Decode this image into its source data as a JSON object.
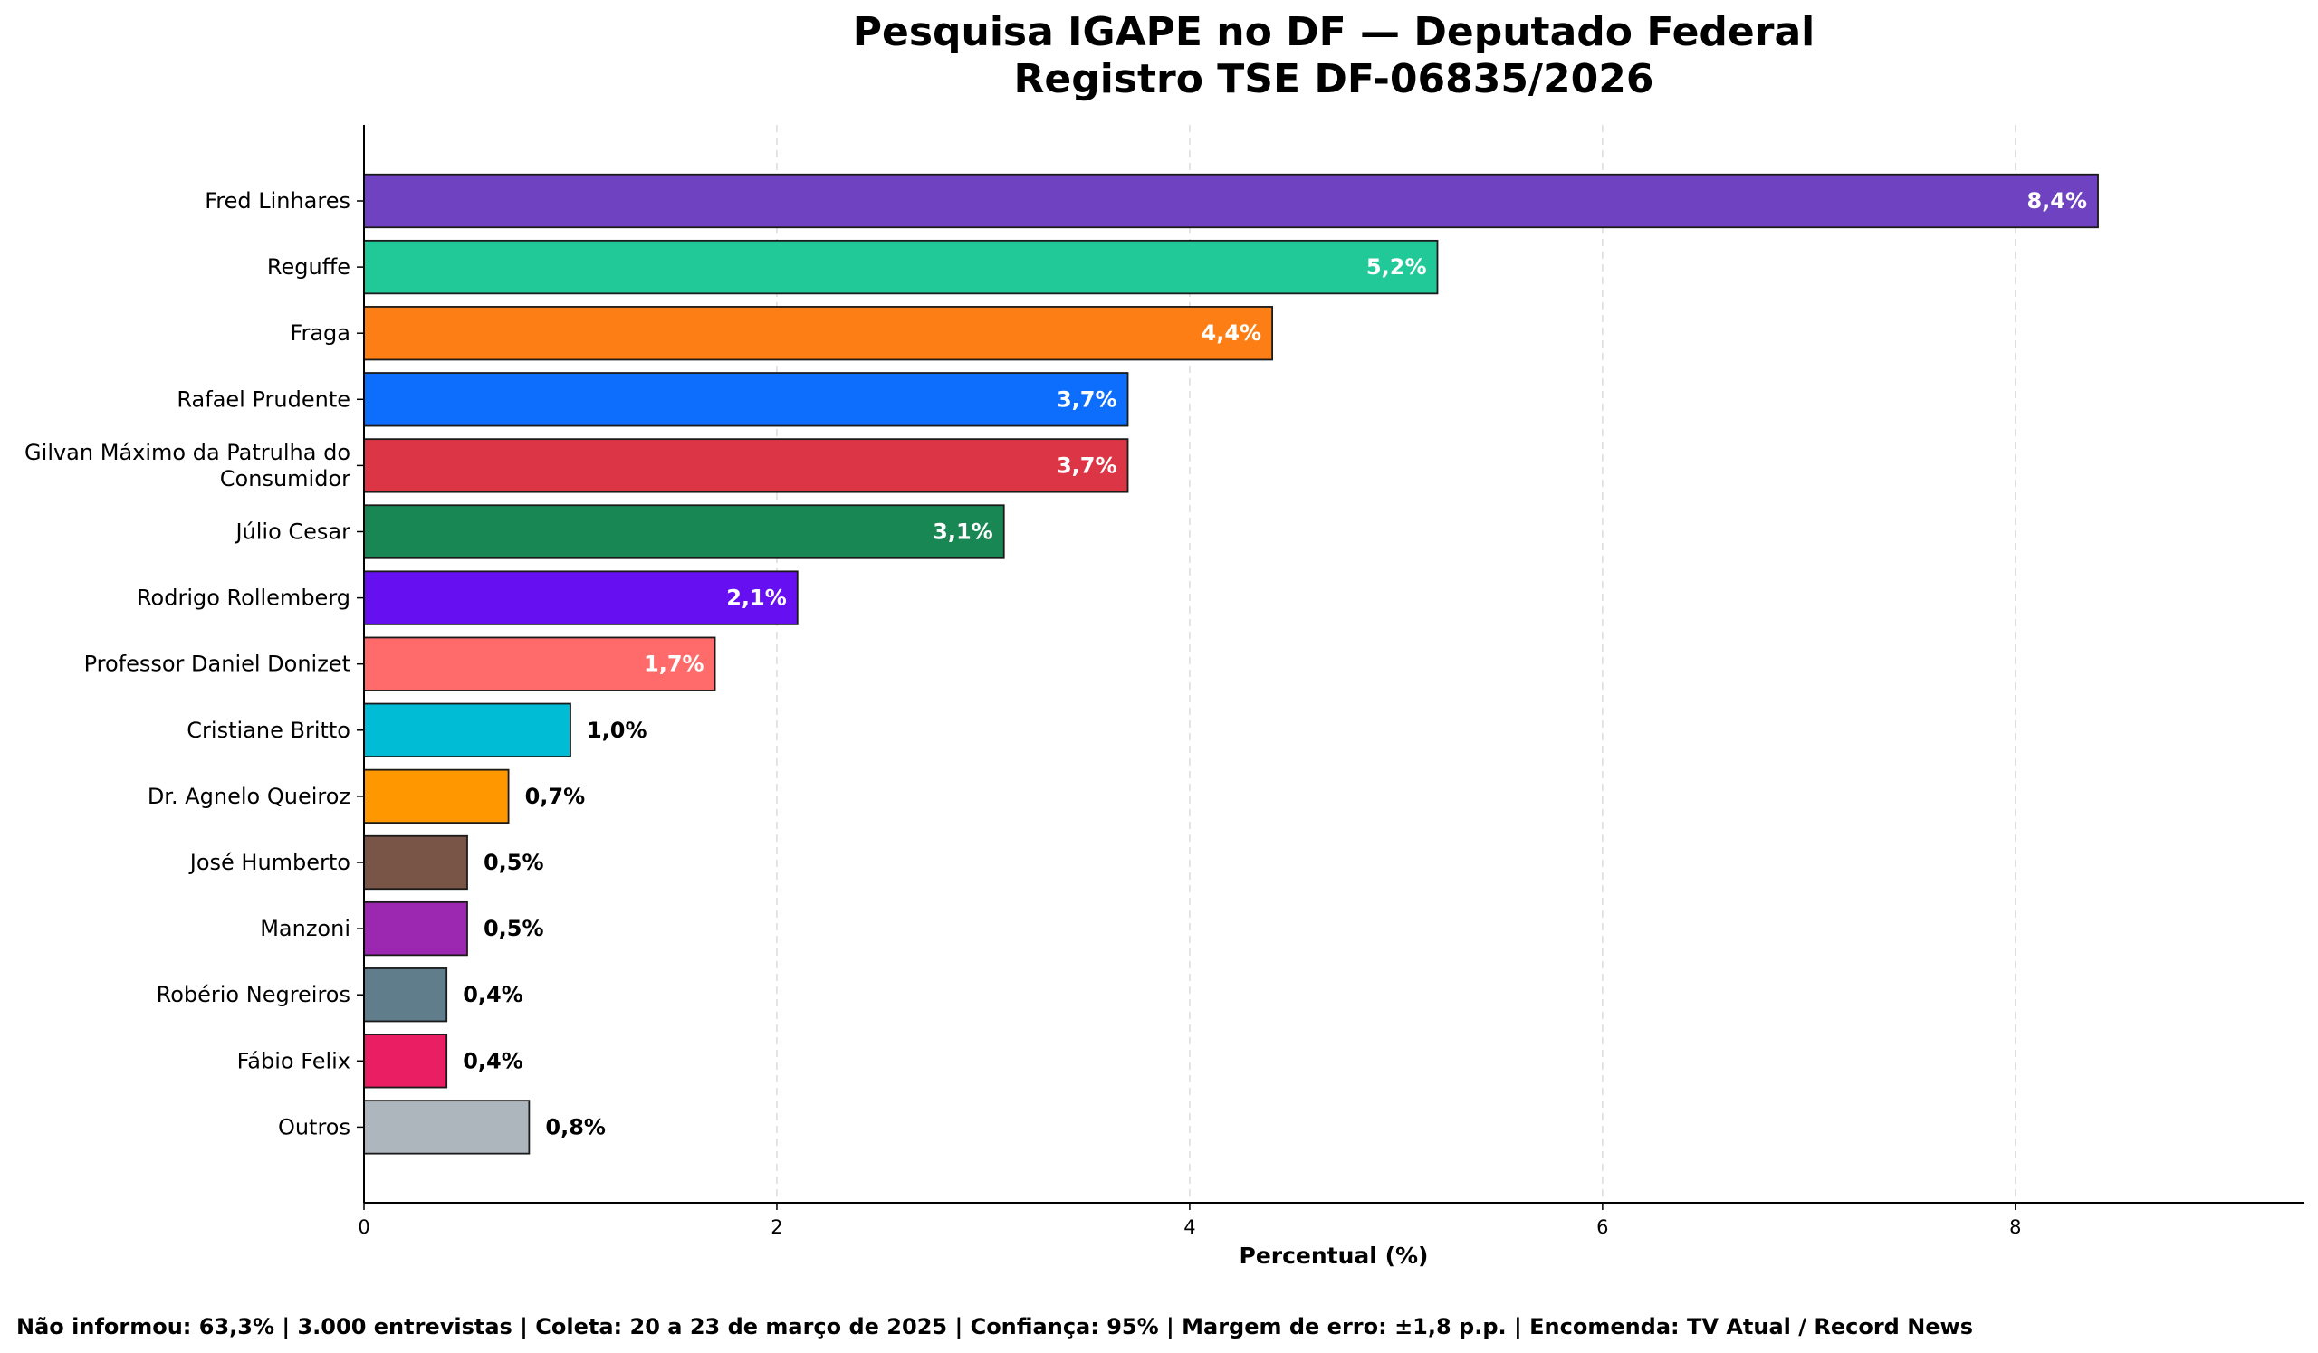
{
  "chart_data": {
    "type": "bar",
    "orientation": "horizontal",
    "title": "Pesquisa IGAPE no DF — Deputado Federal",
    "subtitle": "Registro TSE DF-06835/2026",
    "xlabel": "Percentual (%)",
    "ylabel": "",
    "xlim": [
      0,
      9.4
    ],
    "xticks": [
      0,
      2,
      4,
      6,
      8
    ],
    "grid": "x-dashed",
    "categories": [
      "Fred Linhares",
      "Reguffe",
      "Fraga",
      "Rafael Prudente",
      "Gilvan Máximo da Patrulha do Consumidor",
      "Júlio Cesar",
      "Rodrigo Rollemberg",
      "Professor Daniel Donizet",
      "Cristiane Britto",
      "Dr. Agnelo Queiroz",
      "José Humberto",
      "Manzoni",
      "Robério Negreiros",
      "Fábio Felix",
      "Outros"
    ],
    "category_lines": [
      [
        "Fred Linhares"
      ],
      [
        "Reguffe"
      ],
      [
        "Fraga"
      ],
      [
        "Rafael Prudente"
      ],
      [
        "Gilvan Máximo da Patrulha do",
        "Consumidor"
      ],
      [
        "Júlio Cesar"
      ],
      [
        "Rodrigo Rollemberg"
      ],
      [
        "Professor Daniel Donizet"
      ],
      [
        "Cristiane Britto"
      ],
      [
        "Dr. Agnelo Queiroz"
      ],
      [
        "José Humberto"
      ],
      [
        "Manzoni"
      ],
      [
        "Robério Negreiros"
      ],
      [
        "Fábio Felix"
      ],
      [
        "Outros"
      ]
    ],
    "values": [
      8.4,
      5.2,
      4.4,
      3.7,
      3.7,
      3.1,
      2.1,
      1.7,
      1.0,
      0.7,
      0.5,
      0.5,
      0.4,
      0.4,
      0.8
    ],
    "data_labels": [
      "8,4%",
      "5,2%",
      "4,4%",
      "3,7%",
      "3,7%",
      "3,1%",
      "2,1%",
      "1,7%",
      "1,0%",
      "0,7%",
      "0,5%",
      "0,5%",
      "0,4%",
      "0,4%",
      "0,8%"
    ],
    "colors": [
      "#6f42c1",
      "#20c997",
      "#fd7e14",
      "#0d6efd",
      "#dc3545",
      "#198754",
      "#6610f2",
      "#ff6b6b",
      "#00bcd4",
      "#ff9800",
      "#795548",
      "#9c27b0",
      "#607d8b",
      "#e91e63",
      "#adb5bd"
    ],
    "inside_label_threshold": 1.5,
    "footer": "Não informou: 63,3% | 3.000 entrevistas | Coleta: 20 a 23 de março de 2025 | Confiança: 95% | Margem de erro: ±1,8 p.p. | Encomenda: TV Atual / Record News"
  }
}
